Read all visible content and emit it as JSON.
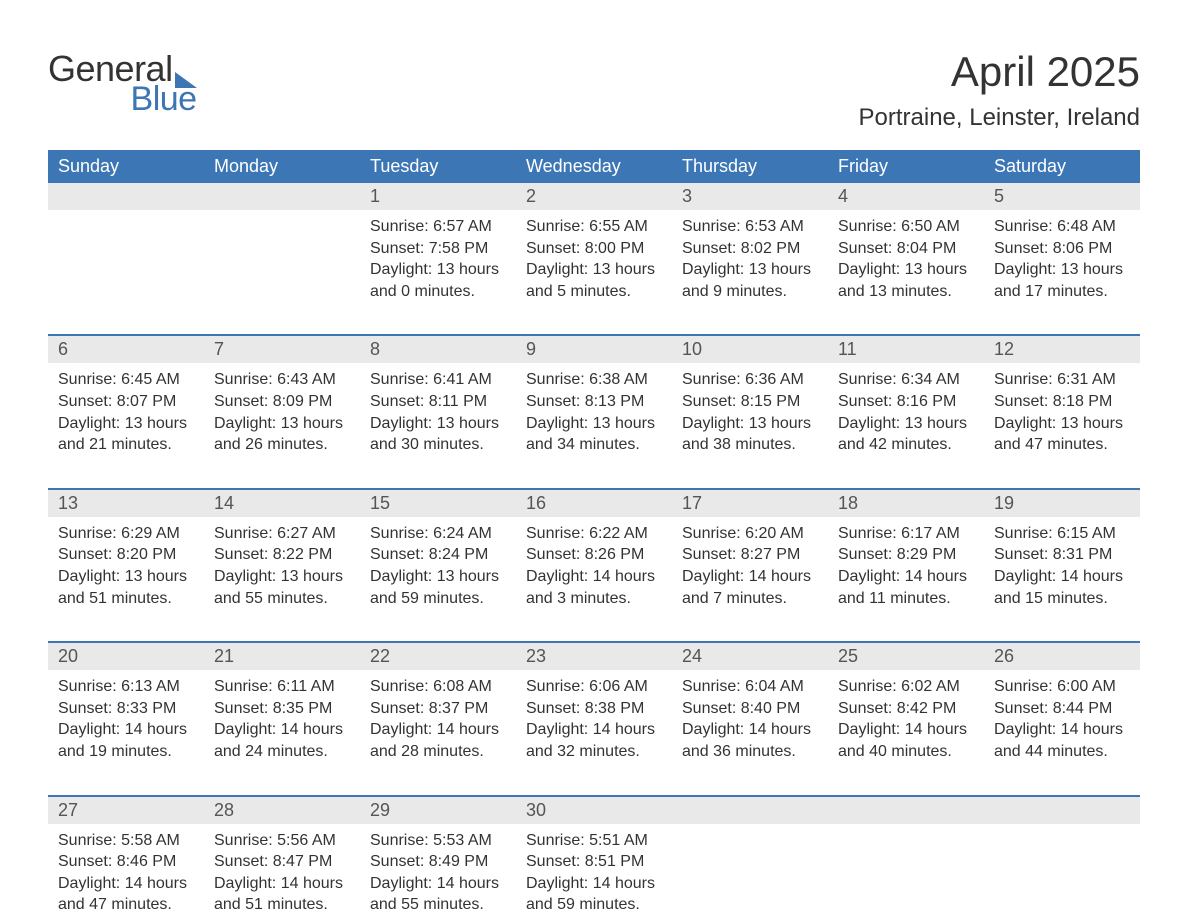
{
  "logo": {
    "word1": "General",
    "word2": "Blue"
  },
  "title": "April 2025",
  "subtitle": "Portraine, Leinster, Ireland",
  "colors": {
    "accent": "#3d76b5",
    "header_text": "#ffffff",
    "daynum_bg": "#e9e9e9",
    "body_text": "#333333",
    "page_bg": "#ffffff"
  },
  "day_headers": [
    "Sunday",
    "Monday",
    "Tuesday",
    "Wednesday",
    "Thursday",
    "Friday",
    "Saturday"
  ],
  "weeks": [
    [
      {
        "num": "",
        "detail": ""
      },
      {
        "num": "",
        "detail": ""
      },
      {
        "num": "1",
        "detail": "Sunrise: 6:57 AM\nSunset: 7:58 PM\nDaylight: 13 hours and 0 minutes."
      },
      {
        "num": "2",
        "detail": "Sunrise: 6:55 AM\nSunset: 8:00 PM\nDaylight: 13 hours and 5 minutes."
      },
      {
        "num": "3",
        "detail": "Sunrise: 6:53 AM\nSunset: 8:02 PM\nDaylight: 13 hours and 9 minutes."
      },
      {
        "num": "4",
        "detail": "Sunrise: 6:50 AM\nSunset: 8:04 PM\nDaylight: 13 hours and 13 minutes."
      },
      {
        "num": "5",
        "detail": "Sunrise: 6:48 AM\nSunset: 8:06 PM\nDaylight: 13 hours and 17 minutes."
      }
    ],
    [
      {
        "num": "6",
        "detail": "Sunrise: 6:45 AM\nSunset: 8:07 PM\nDaylight: 13 hours and 21 minutes."
      },
      {
        "num": "7",
        "detail": "Sunrise: 6:43 AM\nSunset: 8:09 PM\nDaylight: 13 hours and 26 minutes."
      },
      {
        "num": "8",
        "detail": "Sunrise: 6:41 AM\nSunset: 8:11 PM\nDaylight: 13 hours and 30 minutes."
      },
      {
        "num": "9",
        "detail": "Sunrise: 6:38 AM\nSunset: 8:13 PM\nDaylight: 13 hours and 34 minutes."
      },
      {
        "num": "10",
        "detail": "Sunrise: 6:36 AM\nSunset: 8:15 PM\nDaylight: 13 hours and 38 minutes."
      },
      {
        "num": "11",
        "detail": "Sunrise: 6:34 AM\nSunset: 8:16 PM\nDaylight: 13 hours and 42 minutes."
      },
      {
        "num": "12",
        "detail": "Sunrise: 6:31 AM\nSunset: 8:18 PM\nDaylight: 13 hours and 47 minutes."
      }
    ],
    [
      {
        "num": "13",
        "detail": "Sunrise: 6:29 AM\nSunset: 8:20 PM\nDaylight: 13 hours and 51 minutes."
      },
      {
        "num": "14",
        "detail": "Sunrise: 6:27 AM\nSunset: 8:22 PM\nDaylight: 13 hours and 55 minutes."
      },
      {
        "num": "15",
        "detail": "Sunrise: 6:24 AM\nSunset: 8:24 PM\nDaylight: 13 hours and 59 minutes."
      },
      {
        "num": "16",
        "detail": "Sunrise: 6:22 AM\nSunset: 8:26 PM\nDaylight: 14 hours and 3 minutes."
      },
      {
        "num": "17",
        "detail": "Sunrise: 6:20 AM\nSunset: 8:27 PM\nDaylight: 14 hours and 7 minutes."
      },
      {
        "num": "18",
        "detail": "Sunrise: 6:17 AM\nSunset: 8:29 PM\nDaylight: 14 hours and 11 minutes."
      },
      {
        "num": "19",
        "detail": "Sunrise: 6:15 AM\nSunset: 8:31 PM\nDaylight: 14 hours and 15 minutes."
      }
    ],
    [
      {
        "num": "20",
        "detail": "Sunrise: 6:13 AM\nSunset: 8:33 PM\nDaylight: 14 hours and 19 minutes."
      },
      {
        "num": "21",
        "detail": "Sunrise: 6:11 AM\nSunset: 8:35 PM\nDaylight: 14 hours and 24 minutes."
      },
      {
        "num": "22",
        "detail": "Sunrise: 6:08 AM\nSunset: 8:37 PM\nDaylight: 14 hours and 28 minutes."
      },
      {
        "num": "23",
        "detail": "Sunrise: 6:06 AM\nSunset: 8:38 PM\nDaylight: 14 hours and 32 minutes."
      },
      {
        "num": "24",
        "detail": "Sunrise: 6:04 AM\nSunset: 8:40 PM\nDaylight: 14 hours and 36 minutes."
      },
      {
        "num": "25",
        "detail": "Sunrise: 6:02 AM\nSunset: 8:42 PM\nDaylight: 14 hours and 40 minutes."
      },
      {
        "num": "26",
        "detail": "Sunrise: 6:00 AM\nSunset: 8:44 PM\nDaylight: 14 hours and 44 minutes."
      }
    ],
    [
      {
        "num": "27",
        "detail": "Sunrise: 5:58 AM\nSunset: 8:46 PM\nDaylight: 14 hours and 47 minutes."
      },
      {
        "num": "28",
        "detail": "Sunrise: 5:56 AM\nSunset: 8:47 PM\nDaylight: 14 hours and 51 minutes."
      },
      {
        "num": "29",
        "detail": "Sunrise: 5:53 AM\nSunset: 8:49 PM\nDaylight: 14 hours and 55 minutes."
      },
      {
        "num": "30",
        "detail": "Sunrise: 5:51 AM\nSunset: 8:51 PM\nDaylight: 14 hours and 59 minutes."
      },
      {
        "num": "",
        "detail": ""
      },
      {
        "num": "",
        "detail": ""
      },
      {
        "num": "",
        "detail": ""
      }
    ]
  ]
}
